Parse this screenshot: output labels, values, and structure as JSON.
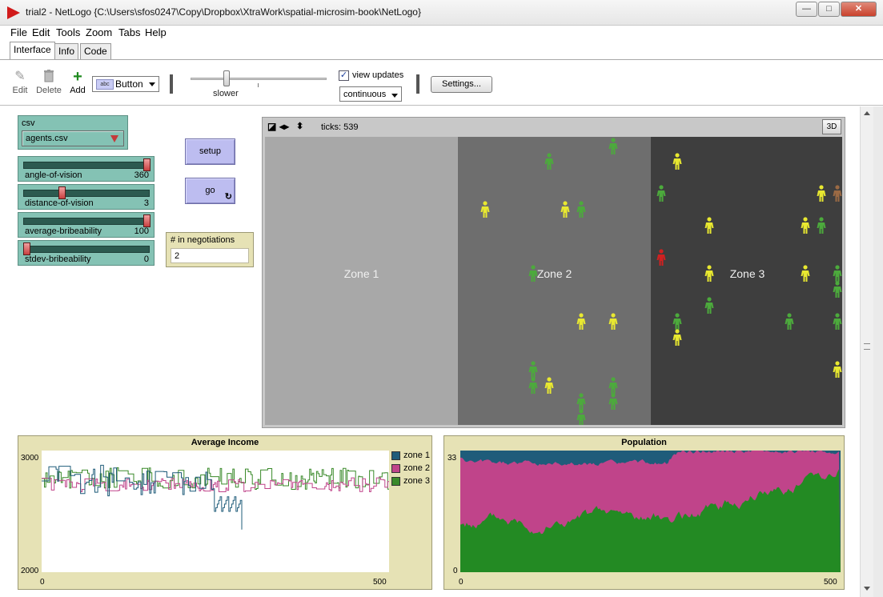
{
  "window": {
    "title": "trial2 - NetLogo {C:\\Users\\sfos0247\\Copy\\Dropbox\\XtraWork\\spatial-microsim-book\\NetLogo}",
    "logo_icon": "netlogo-arrow-icon",
    "controls": {
      "minimize": "—",
      "maximize": "□",
      "close": "✕"
    }
  },
  "menu": [
    "File",
    "Edit",
    "Tools",
    "Zoom",
    "Tabs",
    "Help"
  ],
  "tabs": [
    {
      "label": "Interface",
      "active": true
    },
    {
      "label": "Info",
      "active": false
    },
    {
      "label": "Code",
      "active": false
    }
  ],
  "toolbar": {
    "edit_label": "Edit",
    "delete_label": "Delete",
    "add_label": "Add",
    "widget_type": "Button",
    "widget_type_badge": "abc",
    "speed_label": "slower",
    "speed_fraction": 0.27,
    "view_updates_label": "view updates",
    "view_updates_checked": true,
    "update_mode": "continuous",
    "settings_label": "Settings..."
  },
  "widgets": {
    "chooser": {
      "name": "csv",
      "value": "agents.csv"
    },
    "sliders": [
      {
        "name": "angle-of-vision",
        "value": "360",
        "fraction": 1.0
      },
      {
        "name": "distance-of-vision",
        "value": "3",
        "fraction": 0.29
      },
      {
        "name": "average-bribeability",
        "value": "100",
        "fraction": 1.0
      },
      {
        "name": "stdev-bribeability",
        "value": "0",
        "fraction": 0.0
      }
    ],
    "buttons": {
      "setup": "setup",
      "go": "go",
      "go_forever_glyph": "↻"
    },
    "monitor": {
      "name": "# in negotiations",
      "value": "2"
    }
  },
  "view": {
    "ticks_label": "ticks:",
    "ticks": "539",
    "three_d_label": "3D",
    "zones": [
      {
        "label": "Zone 1",
        "color": "#a8a8a8"
      },
      {
        "label": "Zone 2",
        "color": "#6e6e6e"
      },
      {
        "label": "Zone 3",
        "color": "#3e3e3e"
      }
    ],
    "turtle_colors": {
      "green": "#4caa3c",
      "yellow": "#e8e830",
      "red": "#d22020",
      "brown": "#9b6a44"
    }
  },
  "plots": {
    "income": {
      "title": "Average Income",
      "y_min": "2000",
      "y_max": "3000",
      "x_min": "0",
      "x_max": "500",
      "legend": [
        {
          "name": "zone 1",
          "color": "#1f5c7a"
        },
        {
          "name": "zone 2",
          "color": "#c0448a"
        },
        {
          "name": "zone 3",
          "color": "#3a8a2a"
        }
      ]
    },
    "population": {
      "title": "Population",
      "y_min": "0",
      "y_max": "33",
      "x_min": "0",
      "x_max": "500",
      "colors": {
        "zone1": "#1f5c7a",
        "zone2": "#c0448a",
        "zone3": "#238a23"
      }
    }
  }
}
